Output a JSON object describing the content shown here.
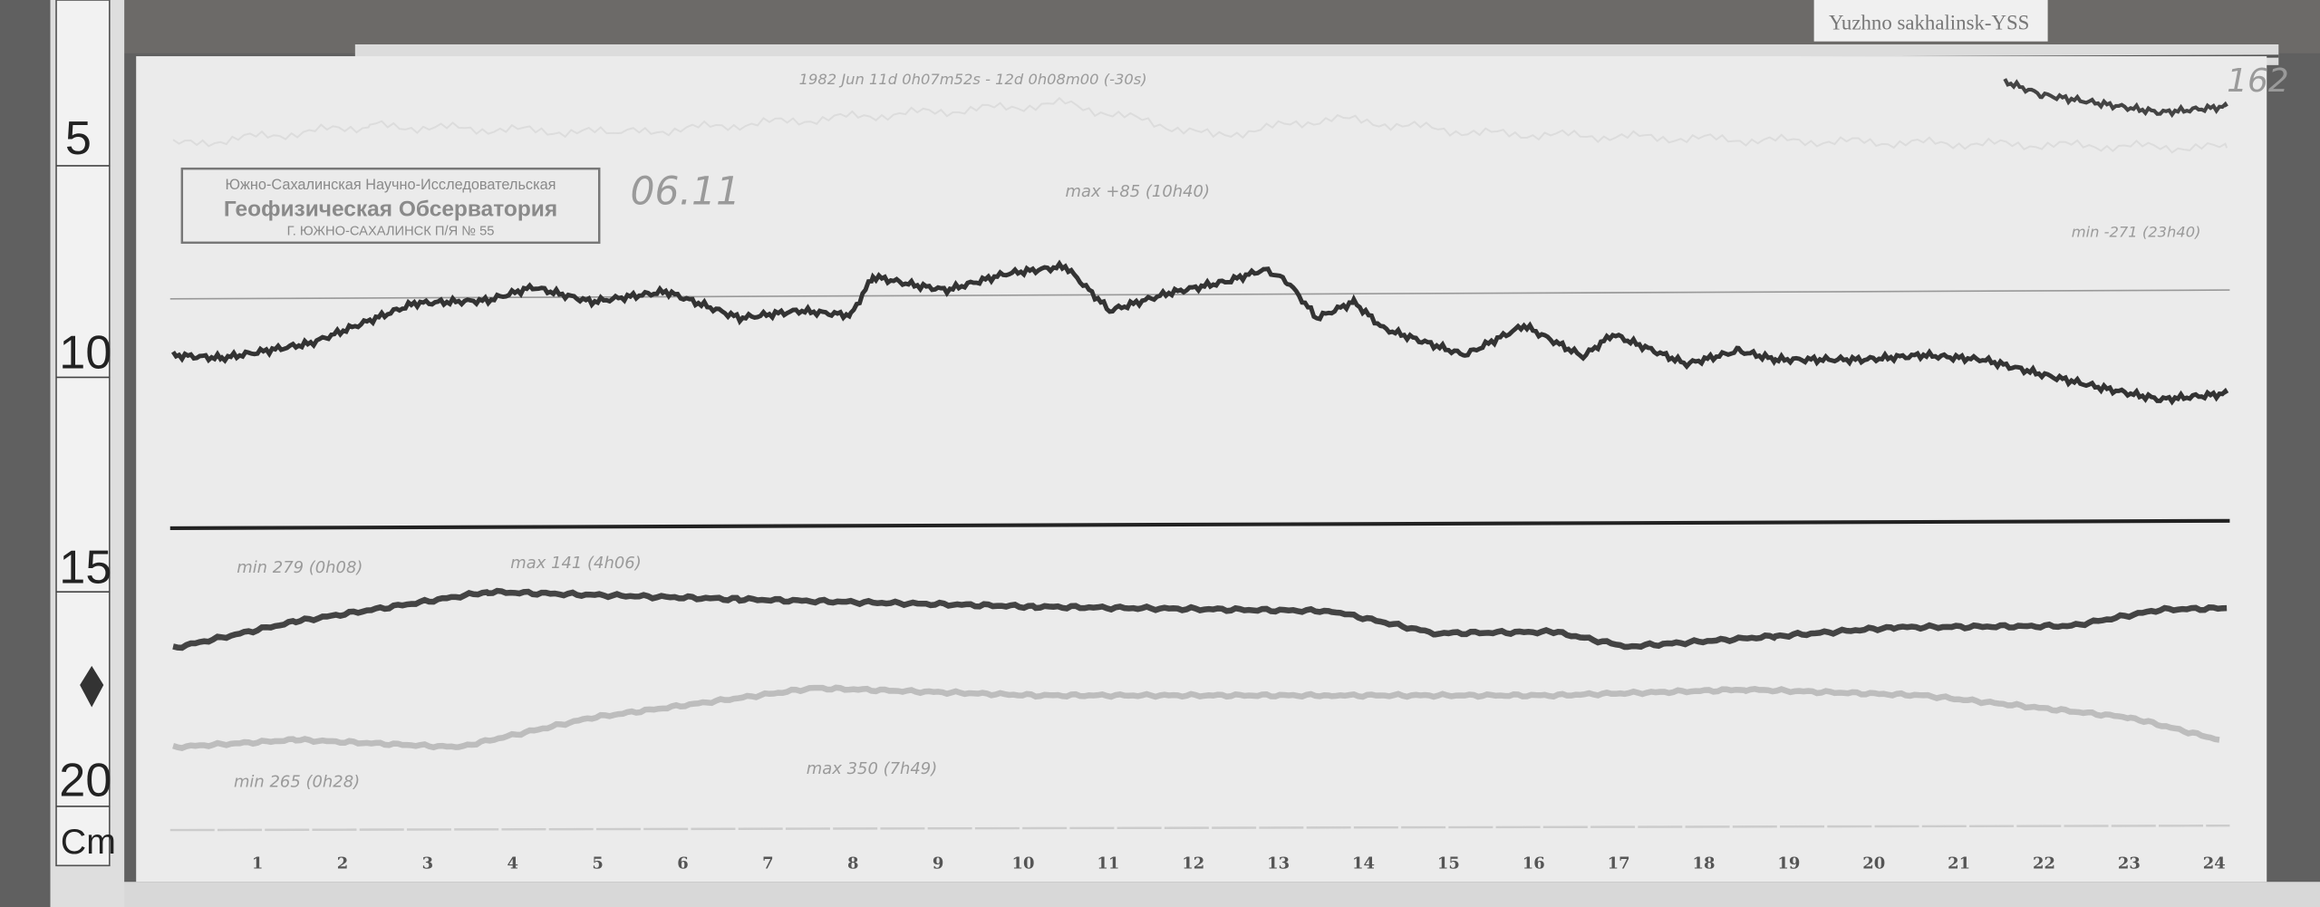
{
  "station_label": "Yuzhno sakhalinsk-YSS",
  "sheet_number": "162",
  "date_note": "06.11",
  "header_note": "1982 Jun 11d 0h07m52s - 12d 0h08m00 (-30s)",
  "stamp": {
    "line1": "Южно-Сахалинская Научно-Исследовательская",
    "line2": "Геофизическая Обсерватория",
    "line3": "Г. ЮЖНО-САХАЛИНСК П/Я № 55"
  },
  "ruler": {
    "labels": [
      "5",
      "10",
      "15",
      "20"
    ],
    "unit": "Cm"
  },
  "annotations": {
    "top_max": "max +85 (10h40)",
    "top_min": "min -271 (23h40)",
    "mid_min": "min 279 (0h08)",
    "mid_max": "max 141 (4h06)",
    "bottom_min": "min 265 (0h28)",
    "bottom_max": "max 350 (7h49)"
  },
  "hours": [
    "1",
    "2",
    "3",
    "4",
    "5",
    "6",
    "7",
    "8",
    "9",
    "10",
    "11",
    "12",
    "13",
    "14",
    "15",
    "16",
    "17",
    "18",
    "19",
    "20",
    "21",
    "22",
    "23",
    "24"
  ]
}
